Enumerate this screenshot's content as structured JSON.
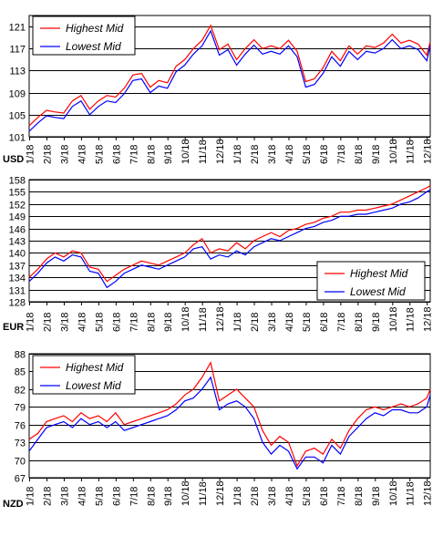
{
  "chart_data": [
    {
      "type": "line",
      "currency": "USD",
      "xlabel": "USD",
      "ylim": [
        101,
        123
      ],
      "y_ticks": [
        101,
        105,
        109,
        113,
        117,
        121
      ],
      "x_ticks": [
        "1/18",
        "2/18",
        "3/18",
        "4/18",
        "5/18",
        "6/18",
        "7/18",
        "8/18",
        "9/18",
        "10/18",
        "11/18",
        "12/18",
        "1/18",
        "2/18",
        "3/18",
        "4/18",
        "5/18",
        "6/18",
        "7/18",
        "8/18",
        "9/18",
        "10/18",
        "11/18",
        "12/18"
      ],
      "grid": true,
      "legend_position": "top-left",
      "series": [
        {
          "name": "Highest Mid",
          "color": "#ff0000",
          "x": [
            0,
            0.5,
            1,
            1.5,
            2,
            2.5,
            3,
            3.5,
            4,
            4.5,
            5,
            5.5,
            6,
            6.5,
            7,
            7.5,
            8,
            8.5,
            9,
            9.5,
            10,
            10.5,
            11,
            11.5,
            12,
            12.5,
            13,
            13.5,
            14,
            14.5,
            15,
            15.5,
            16,
            16.5,
            17,
            17.5,
            18,
            18.5,
            19,
            19.5,
            20,
            20.5,
            21,
            21.5,
            22,
            22.5,
            23,
            23.2
          ],
          "values": [
            103.0,
            104.5,
            105.8,
            105.5,
            105.3,
            107.5,
            108.5,
            106.0,
            107.5,
            108.5,
            108.2,
            109.8,
            112.2,
            112.5,
            110.0,
            111.2,
            110.8,
            113.8,
            115.0,
            117.0,
            118.5,
            121.2,
            116.8,
            117.8,
            115.0,
            117.0,
            118.6,
            117.0,
            117.5,
            117.0,
            118.5,
            116.5,
            111.0,
            111.5,
            113.5,
            116.5,
            114.8,
            117.5,
            116.0,
            117.5,
            117.2,
            118.0,
            119.6,
            118.0,
            118.5,
            117.8,
            115.8,
            118.2
          ]
        },
        {
          "name": "Lowest Mid",
          "color": "#0000ff",
          "x": [
            0,
            0.5,
            1,
            1.5,
            2,
            2.5,
            3,
            3.5,
            4,
            4.5,
            5,
            5.5,
            6,
            6.5,
            7,
            7.5,
            8,
            8.5,
            9,
            9.5,
            10,
            10.5,
            11,
            11.5,
            12,
            12.5,
            13,
            13.5,
            14,
            14.5,
            15,
            15.5,
            16,
            16.5,
            17,
            17.5,
            18,
            18.5,
            19,
            19.5,
            20,
            20.5,
            21,
            21.5,
            22,
            22.5,
            23,
            23.2
          ],
          "values": [
            102.0,
            103.5,
            104.8,
            104.5,
            104.3,
            106.5,
            107.5,
            105.0,
            106.5,
            107.5,
            107.2,
            108.8,
            111.2,
            111.5,
            109.0,
            110.2,
            109.8,
            112.8,
            114.0,
            116.0,
            117.5,
            120.2,
            115.8,
            116.8,
            114.0,
            116.0,
            117.6,
            116.0,
            116.5,
            116.0,
            117.5,
            115.5,
            110.0,
            110.5,
            112.5,
            115.5,
            113.8,
            116.5,
            115.0,
            116.5,
            116.2,
            117.0,
            118.6,
            117.0,
            117.5,
            116.8,
            114.8,
            117.5
          ]
        }
      ]
    },
    {
      "type": "line",
      "currency": "EUR",
      "xlabel": "EUR",
      "ylim": [
        128,
        158
      ],
      "y_ticks": [
        128,
        131,
        134,
        137,
        140,
        143,
        146,
        149,
        152,
        155,
        158
      ],
      "x_ticks": [
        "1/18",
        "2/18",
        "3/18",
        "4/18",
        "5/18",
        "6/18",
        "7/18",
        "8/18",
        "9/18",
        "10/18",
        "11/18",
        "12/18",
        "1/18",
        "2/18",
        "3/18",
        "4/18",
        "5/18",
        "6/18",
        "7/18",
        "8/18",
        "9/18",
        "10/18",
        "11/18",
        "12/18"
      ],
      "grid": true,
      "legend_position": "bottom-right",
      "series": [
        {
          "name": "Highest Mid",
          "color": "#ff0000",
          "x": [
            0,
            0.5,
            1,
            1.5,
            2,
            2.5,
            3,
            3.5,
            4,
            4.5,
            5,
            5.5,
            6,
            6.5,
            7,
            7.5,
            8,
            8.5,
            9,
            9.5,
            10,
            10.5,
            11,
            11.5,
            12,
            12.5,
            13,
            13.5,
            14,
            14.5,
            15,
            15.5,
            16,
            16.5,
            17,
            17.5,
            18,
            18.5,
            19,
            19.5,
            20,
            20.5,
            21,
            21.5,
            22,
            22.5,
            23,
            23.2
          ],
          "values": [
            134.0,
            136.0,
            138.5,
            140.0,
            139.0,
            140.5,
            140.0,
            136.5,
            136.0,
            133.0,
            134.5,
            136.0,
            137.0,
            138.0,
            137.5,
            137.0,
            138.0,
            139.0,
            140.0,
            142.0,
            143.5,
            140.0,
            141.0,
            140.5,
            142.5,
            141.0,
            143.0,
            144.0,
            145.0,
            144.0,
            145.5,
            146.0,
            147.0,
            147.5,
            148.5,
            149.0,
            150.0,
            150.0,
            150.5,
            150.5,
            151.0,
            151.5,
            152.0,
            153.0,
            154.0,
            155.0,
            156.0,
            156.5
          ]
        },
        {
          "name": "Lowest Mid",
          "color": "#0000ff",
          "x": [
            0,
            0.5,
            1,
            1.5,
            2,
            2.5,
            3,
            3.5,
            4,
            4.5,
            5,
            5.5,
            6,
            6.5,
            7,
            7.5,
            8,
            8.5,
            9,
            9.5,
            10,
            10.5,
            11,
            11.5,
            12,
            12.5,
            13,
            13.5,
            14,
            14.5,
            15,
            15.5,
            16,
            16.5,
            17,
            17.5,
            18,
            18.5,
            19,
            19.5,
            20,
            20.5,
            21,
            21.5,
            22,
            22.5,
            23,
            23.2
          ],
          "values": [
            133.0,
            135.0,
            137.5,
            139.0,
            138.0,
            139.5,
            139.0,
            135.5,
            135.0,
            131.5,
            133.0,
            135.0,
            136.0,
            137.0,
            136.5,
            136.0,
            137.0,
            138.0,
            139.0,
            141.0,
            141.5,
            138.5,
            139.5,
            139.0,
            140.5,
            139.5,
            141.5,
            142.5,
            143.5,
            143.0,
            144.0,
            145.0,
            146.0,
            146.5,
            147.5,
            148.0,
            149.0,
            149.0,
            149.5,
            149.5,
            150.0,
            150.5,
            151.0,
            152.0,
            152.5,
            153.5,
            155.0,
            155.5
          ]
        }
      ]
    },
    {
      "type": "line",
      "currency": "NZD",
      "xlabel": "NZD",
      "ylim": [
        67,
        88
      ],
      "y_ticks": [
        67,
        70,
        73,
        76,
        79,
        82,
        85,
        88
      ],
      "x_ticks": [
        "1/18",
        "2/18",
        "3/18",
        "4/18",
        "5/18",
        "6/18",
        "7/18",
        "8/18",
        "9/18",
        "10/18",
        "11/18",
        "12/18",
        "1/18",
        "2/18",
        "3/18",
        "4/18",
        "5/18",
        "6/18",
        "7/18",
        "8/18",
        "9/18",
        "10/18",
        "11/18",
        "12/18"
      ],
      "grid": true,
      "legend_position": "top-left",
      "series": [
        {
          "name": "Highest Mid",
          "color": "#ff0000",
          "x": [
            0,
            0.5,
            1,
            1.5,
            2,
            2.5,
            3,
            3.5,
            4,
            4.5,
            5,
            5.5,
            6,
            6.5,
            7,
            7.5,
            8,
            8.5,
            9,
            9.5,
            10,
            10.5,
            11,
            11.5,
            12,
            12.5,
            13,
            13.5,
            14,
            14.5,
            15,
            15.5,
            16,
            16.5,
            17,
            17.5,
            18,
            18.5,
            19,
            19.5,
            20,
            20.5,
            21,
            21.5,
            22,
            22.5,
            23,
            23.2
          ],
          "values": [
            73.5,
            74.5,
            76.5,
            77.0,
            77.5,
            76.5,
            78.0,
            77.0,
            77.5,
            76.5,
            78.0,
            76.0,
            76.5,
            77.0,
            77.5,
            78.0,
            78.5,
            79.5,
            81.0,
            82.0,
            84.0,
            86.5,
            80.0,
            81.0,
            82.0,
            80.5,
            79.0,
            75.0,
            72.5,
            74.0,
            73.0,
            69.0,
            71.5,
            72.0,
            71.0,
            73.5,
            72.0,
            75.0,
            77.0,
            78.5,
            79.0,
            78.5,
            79.0,
            79.5,
            79.0,
            79.5,
            80.5,
            82.0
          ]
        },
        {
          "name": "Lowest Mid",
          "color": "#0000ff",
          "x": [
            0,
            0.5,
            1,
            1.5,
            2,
            2.5,
            3,
            3.5,
            4,
            4.5,
            5,
            5.5,
            6,
            6.5,
            7,
            7.5,
            8,
            8.5,
            9,
            9.5,
            10,
            10.5,
            11,
            11.5,
            12,
            12.5,
            13,
            13.5,
            14,
            14.5,
            15,
            15.5,
            16,
            16.5,
            17,
            17.5,
            18,
            18.5,
            19,
            19.5,
            20,
            20.5,
            21,
            21.5,
            22,
            22.5,
            23,
            23.2
          ],
          "values": [
            71.5,
            73.5,
            75.5,
            76.0,
            76.5,
            75.5,
            77.0,
            76.0,
            76.5,
            75.5,
            76.5,
            75.0,
            75.5,
            76.0,
            76.5,
            77.0,
            77.5,
            78.5,
            80.0,
            80.5,
            82.0,
            84.0,
            78.5,
            79.5,
            80.0,
            79.0,
            77.0,
            73.0,
            71.0,
            72.5,
            71.5,
            68.5,
            70.5,
            70.5,
            69.5,
            72.5,
            71.0,
            74.0,
            75.5,
            77.0,
            78.0,
            77.5,
            78.5,
            78.5,
            78.0,
            78.0,
            79.0,
            81.0
          ]
        }
      ]
    }
  ]
}
